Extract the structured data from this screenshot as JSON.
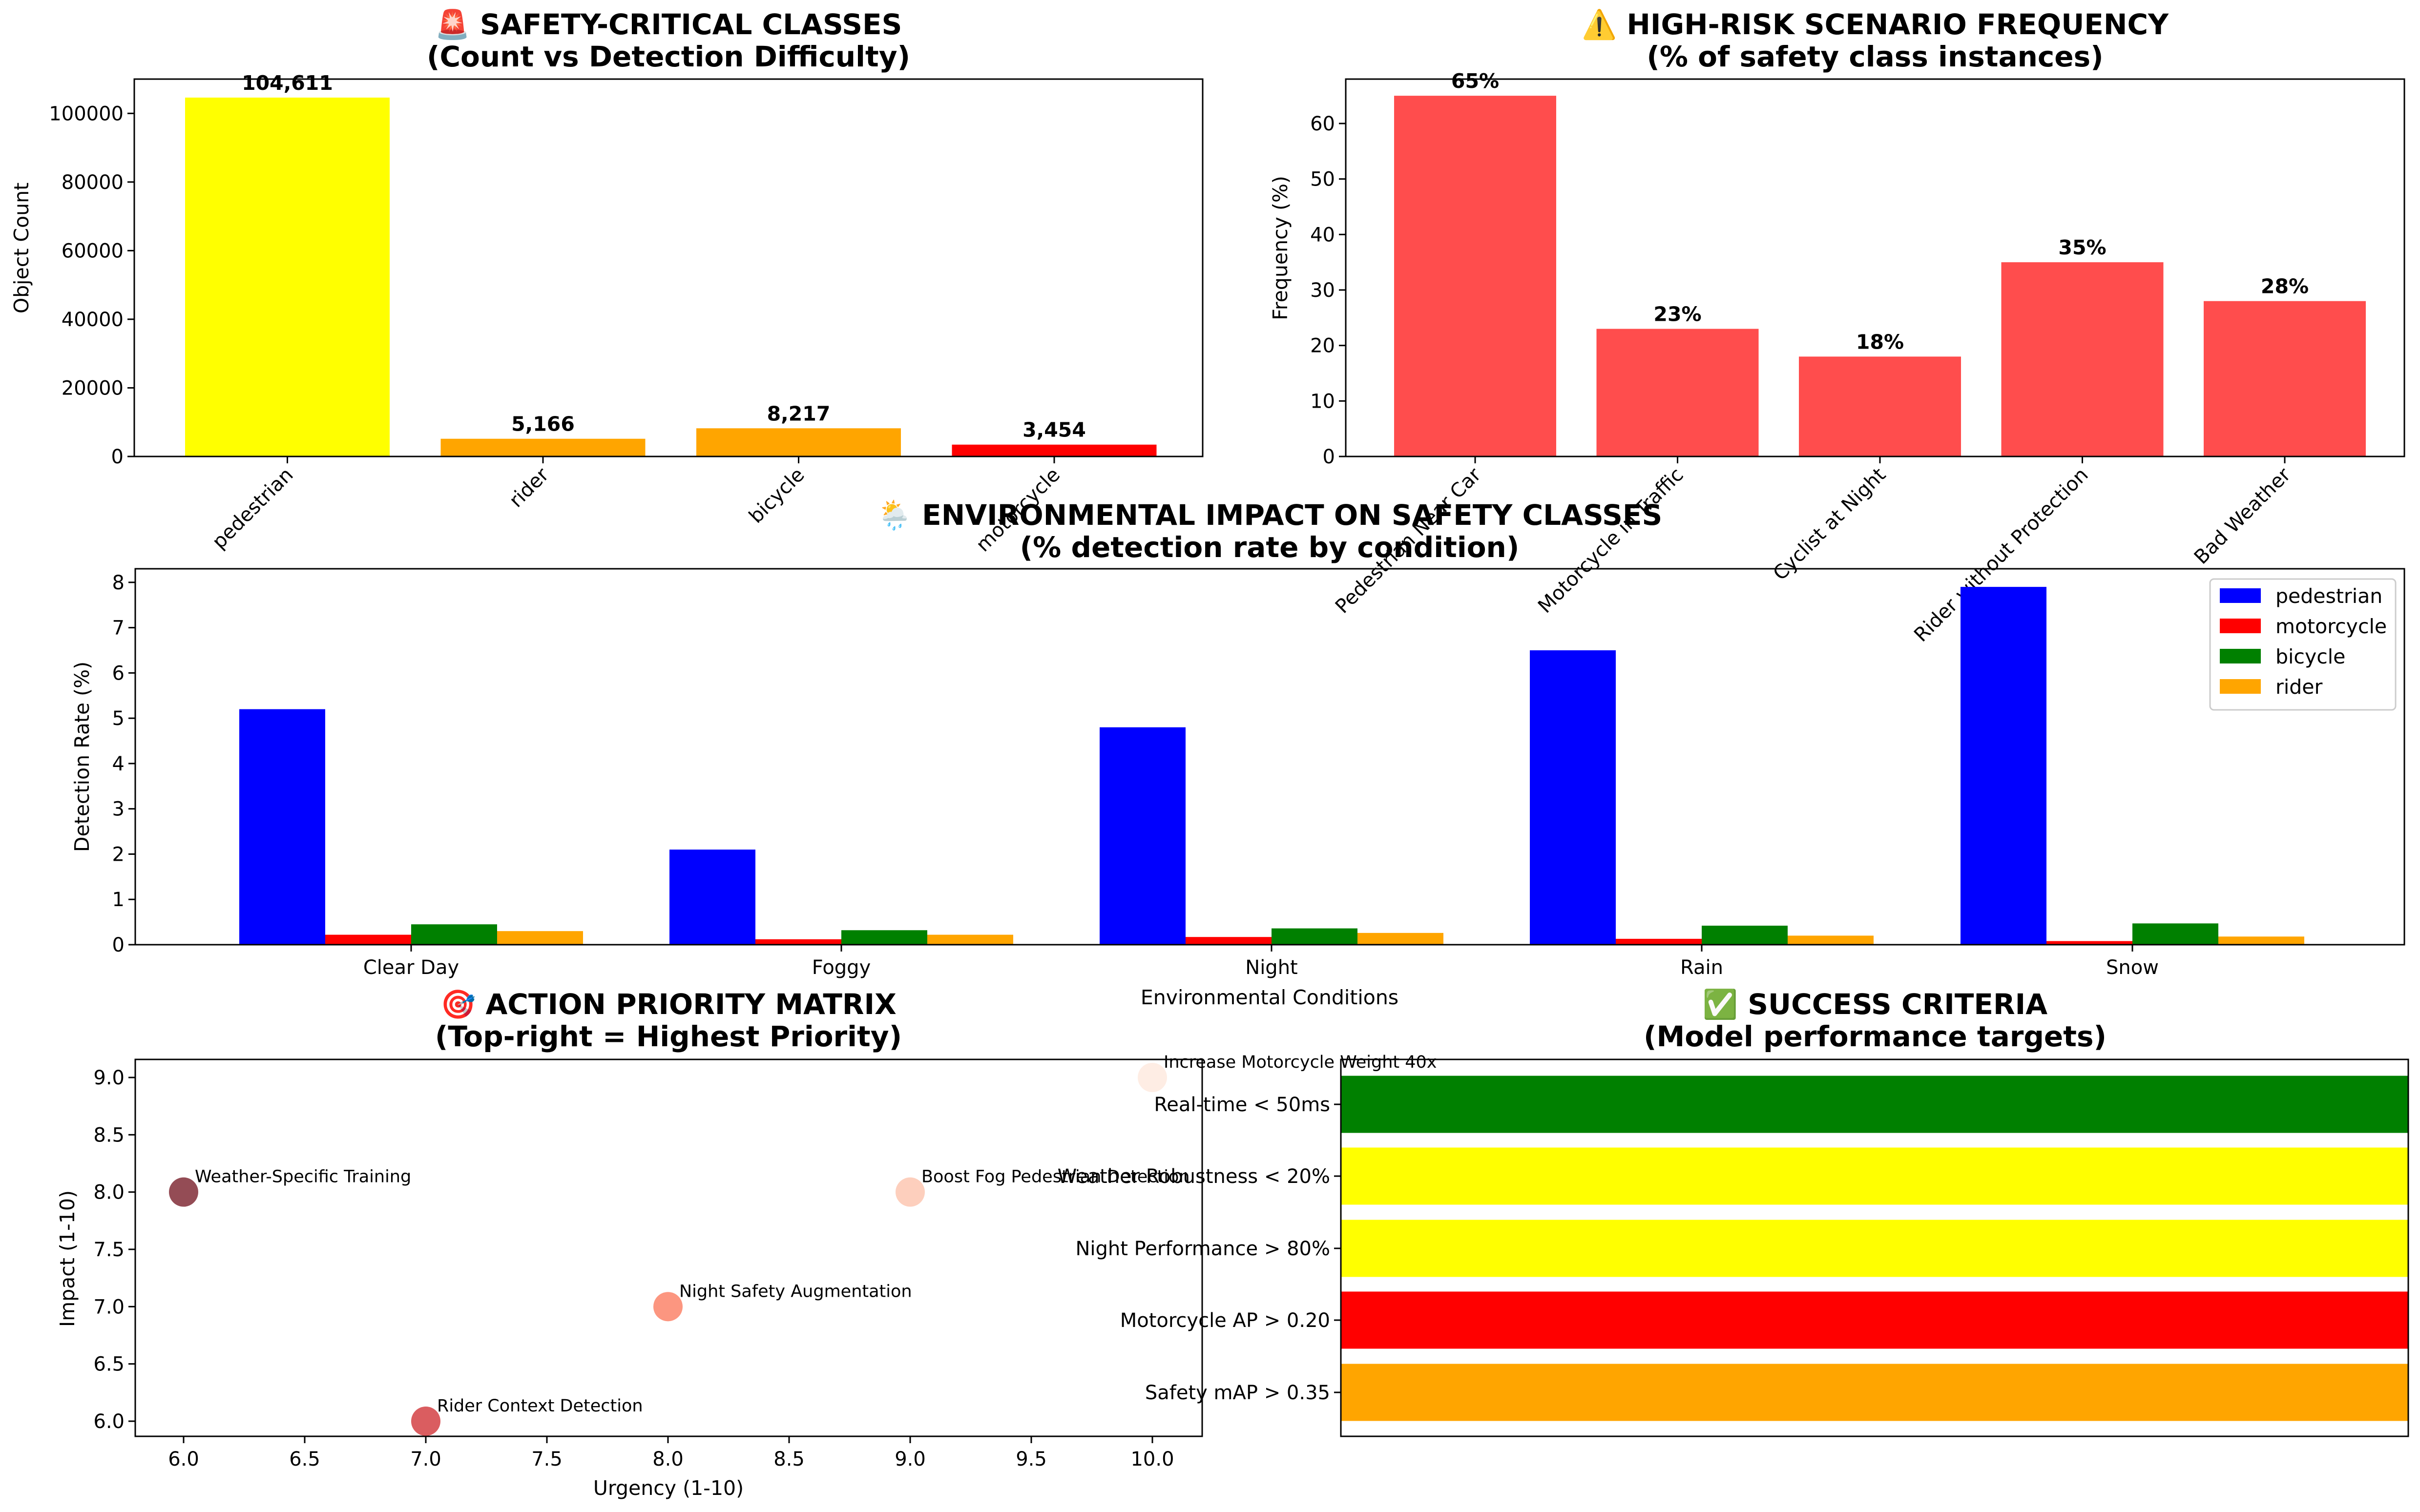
{
  "chart_data": [
    {
      "type": "bar",
      "title": "🚨 SAFETY-CRITICAL CLASSES",
      "subtitle": "(Count vs Detection Difficulty)",
      "xlabel": "",
      "ylabel": "Object Count",
      "categories": [
        "pedestrian",
        "rider",
        "bicycle",
        "motorcycle"
      ],
      "values": [
        104611,
        5166,
        8217,
        3454
      ],
      "value_labels": [
        "104,611",
        "5,166",
        "8,217",
        "3,454"
      ],
      "colors": [
        "#ffff00",
        "#ffa500",
        "#ffa500",
        "#ff0000"
      ],
      "ylim": [
        0,
        110000
      ],
      "yticks": [
        0,
        20000,
        40000,
        60000,
        80000,
        100000
      ],
      "grid": false
    },
    {
      "type": "bar",
      "title": "⚠️ HIGH-RISK SCENARIO FREQUENCY",
      "subtitle": "(% of safety class instances)",
      "xlabel": "",
      "ylabel": "Frequency (%)",
      "categories": [
        "Pedestrian Near Car",
        "Motorcycle in Traffic",
        "Cyclist at Night",
        "Rider without Protection",
        "Bad Weather"
      ],
      "values": [
        65,
        23,
        18,
        35,
        28
      ],
      "value_labels": [
        "65%",
        "23%",
        "18%",
        "35%",
        "28%"
      ],
      "colors": [
        "#ff4d4d"
      ],
      "ylim": [
        0,
        68
      ],
      "yticks": [
        0,
        10,
        20,
        30,
        40,
        50,
        60
      ],
      "grid": false
    },
    {
      "type": "bar",
      "title": "🌦️ ENVIRONMENTAL IMPACT ON SAFETY CLASSES",
      "subtitle": "(% detection rate by condition)",
      "xlabel": "Environmental Conditions",
      "ylabel": "Detection Rate (%)",
      "categories": [
        "Clear Day",
        "Foggy",
        "Night",
        "Rain",
        "Snow"
      ],
      "series": [
        {
          "name": "pedestrian",
          "color": "#0000ff",
          "values": [
            5.2,
            2.1,
            4.8,
            6.5,
            7.9
          ]
        },
        {
          "name": "motorcycle",
          "color": "#ff0000",
          "values": [
            0.22,
            0.12,
            0.17,
            0.13,
            0.08
          ]
        },
        {
          "name": "bicycle",
          "color": "#008000",
          "values": [
            0.45,
            0.32,
            0.36,
            0.42,
            0.47
          ]
        },
        {
          "name": "rider",
          "color": "#ffa500",
          "values": [
            0.3,
            0.22,
            0.26,
            0.2,
            0.18
          ]
        }
      ],
      "ylim": [
        0,
        8.3
      ],
      "yticks": [
        0,
        1,
        2,
        3,
        4,
        5,
        6,
        7,
        8
      ],
      "legend": "top-right",
      "grid": false
    },
    {
      "type": "scatter",
      "title": "🎯 ACTION PRIORITY MATRIX",
      "subtitle": "(Top-right = Highest Priority)",
      "xlabel": "Urgency (1-10)",
      "ylabel": "Impact (1-10)",
      "points": [
        {
          "label": "Increase Motorcycle Weight 40x",
          "x": 10,
          "y": 9,
          "color": "#fee5d9"
        },
        {
          "label": "Boost Fog Pedestrian Detection",
          "x": 9,
          "y": 8,
          "color": "#fcbba1"
        },
        {
          "label": "Night Safety Augmentation",
          "x": 8,
          "y": 7,
          "color": "#fb6a4a"
        },
        {
          "label": "Rider Context Detection",
          "x": 7,
          "y": 6,
          "color": "#cb181d"
        },
        {
          "label": "Weather-Specific Training",
          "x": 6,
          "y": 8,
          "color": "#67000d"
        }
      ],
      "xlim": [
        5.8,
        10.2
      ],
      "ylim": [
        5.85,
        9.15
      ],
      "xticks": [
        "6.0",
        "6.5",
        "7.0",
        "7.5",
        "8.0",
        "8.5",
        "9.0",
        "9.5",
        "10.0"
      ],
      "yticks": [
        "6.0",
        "6.5",
        "7.0",
        "7.5",
        "8.0",
        "8.5",
        "9.0"
      ],
      "grid": false
    },
    {
      "type": "bar",
      "orientation": "horizontal",
      "title": "✅ SUCCESS CRITERIA",
      "subtitle": "(Model performance targets)",
      "xlabel": "",
      "ylabel": "",
      "categories": [
        "Real-time < 50ms",
        "Weather Robustness < 20%",
        "Night Performance > 80%",
        "Motorcycle AP > 0.20",
        "Safety mAP > 0.35"
      ],
      "values": [
        1,
        1,
        1,
        1,
        1
      ],
      "colors": [
        "#008000",
        "#ffff00",
        "#ffff00",
        "#ff0000",
        "#ffa500"
      ],
      "xlim": [
        0,
        1
      ],
      "grid": false
    }
  ]
}
